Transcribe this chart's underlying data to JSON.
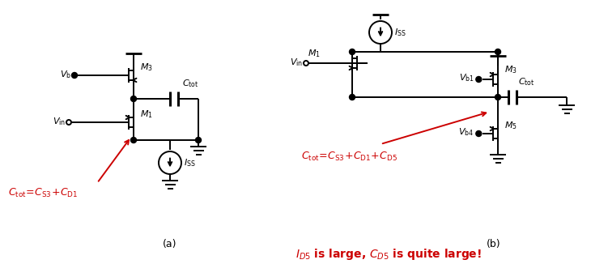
{
  "fig_width": 7.3,
  "fig_height": 3.26,
  "dpi": 100,
  "bg_color": "#ffffff",
  "black": "#000000",
  "red": "#cc0000"
}
